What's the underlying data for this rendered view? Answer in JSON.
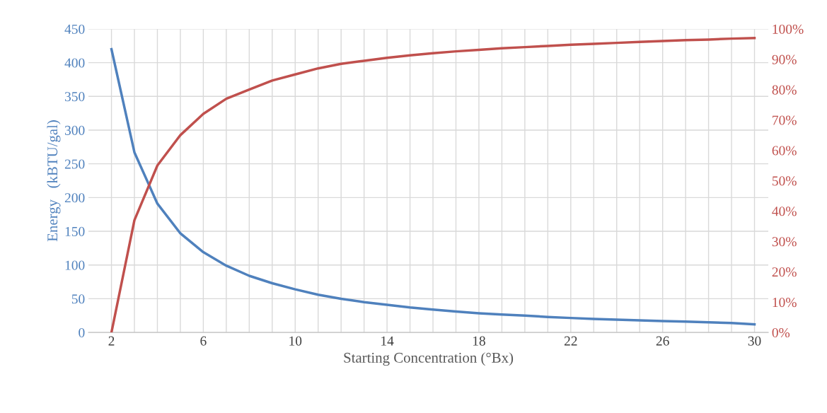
{
  "chart_data": {
    "type": "line",
    "xlabel": "Starting Concentration (°Bx)",
    "ylabel": "Energy   (kBTU/gal)",
    "x": [
      2,
      3,
      4,
      5,
      6,
      7,
      8,
      9,
      10,
      11,
      12,
      13,
      14,
      15,
      16,
      17,
      18,
      19,
      20,
      21,
      22,
      23,
      24,
      25,
      26,
      27,
      28,
      29,
      30
    ],
    "xlim": [
      1,
      30.6
    ],
    "xticks": [
      2,
      {
        "value": 3,
        "label": null
      },
      {
        "value": 4,
        "label": null
      },
      {
        "value": 5,
        "label": null
      },
      6,
      {
        "value": 7,
        "label": null
      },
      {
        "value": 8,
        "label": null
      },
      {
        "value": 9,
        "label": null
      },
      10,
      {
        "value": 11,
        "label": null
      },
      {
        "value": 12,
        "label": null
      },
      {
        "value": 13,
        "label": null
      },
      14,
      {
        "value": 15,
        "label": null
      },
      {
        "value": 16,
        "label": null
      },
      {
        "value": 17,
        "label": null
      },
      18,
      {
        "value": 19,
        "label": null
      },
      {
        "value": 20,
        "label": null
      },
      {
        "value": 21,
        "label": null
      },
      22,
      {
        "value": 23,
        "label": null
      },
      {
        "value": 24,
        "label": null
      },
      {
        "value": 25,
        "label": null
      },
      26,
      {
        "value": 27,
        "label": null
      },
      {
        "value": 28,
        "label": null
      },
      {
        "value": 29,
        "label": null
      },
      30
    ],
    "ylim": [
      0,
      450
    ],
    "yticks": [
      0,
      50,
      100,
      150,
      200,
      250,
      300,
      350,
      400,
      450
    ],
    "y2lim": [
      0,
      100
    ],
    "y2ticks": [
      {
        "value": 0,
        "label": "0%"
      },
      {
        "value": 10,
        "label": "10%"
      },
      {
        "value": 20,
        "label": "20%"
      },
      {
        "value": 30,
        "label": "30%"
      },
      {
        "value": 40,
        "label": "40%"
      },
      {
        "value": 50,
        "label": "50%"
      },
      {
        "value": 60,
        "label": "60%"
      },
      {
        "value": 70,
        "label": "70%"
      },
      {
        "value": 80,
        "label": "80%"
      },
      {
        "value": 90,
        "label": "90%"
      },
      {
        "value": 100,
        "label": "100%"
      }
    ],
    "grid": true,
    "marker": "none",
    "line_style": "solid",
    "series": [
      {
        "color": "#4f81bd",
        "values": [
          420,
          267,
          191,
          147,
          119,
          99,
          84,
          73,
          64,
          56,
          50,
          45,
          41,
          37,
          34,
          31,
          28.5,
          26.5,
          25,
          23,
          21.5,
          20,
          19,
          18,
          17,
          16,
          15,
          14,
          12
        ]
      },
      {
        "color": "#c0504d",
        "axis": "y2",
        "values": [
          0,
          37,
          55,
          65,
          72,
          77,
          80,
          83,
          85,
          87,
          88.5,
          89.5,
          90.5,
          91.3,
          92,
          92.6,
          93.1,
          93.6,
          94,
          94.4,
          94.8,
          95.1,
          95.4,
          95.7,
          96,
          96.3,
          96.5,
          96.8,
          97
        ]
      }
    ]
  }
}
